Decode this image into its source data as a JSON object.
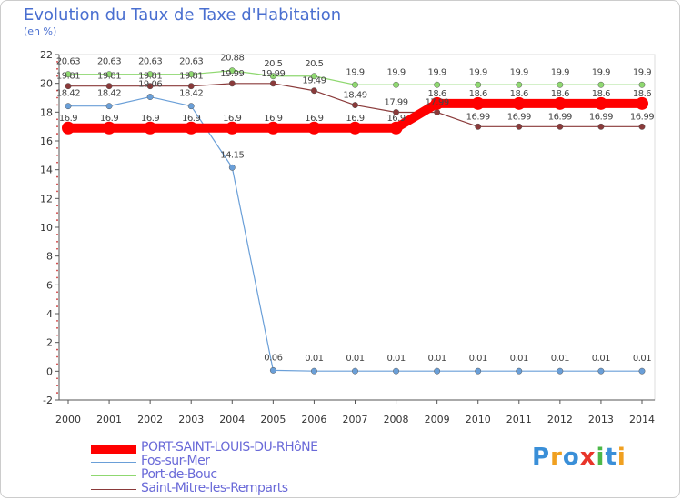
{
  "chart_data": {
    "type": "line",
    "title": "Evolution du Taux de Taxe d'Habitation",
    "subtitle": "(en %)",
    "xlabel": "",
    "ylabel": "",
    "ylim": [
      -2,
      22
    ],
    "yticks": [
      -2,
      0,
      2,
      4,
      6,
      8,
      10,
      12,
      14,
      16,
      18,
      20,
      22
    ],
    "categories": [
      "2000",
      "2001",
      "2002",
      "2003",
      "2004",
      "2005",
      "2006",
      "2007",
      "2008",
      "2009",
      "2010",
      "2011",
      "2012",
      "2013",
      "2014"
    ],
    "series": [
      {
        "name": "PORT-SAINT-LOUIS-DU-RHôNE",
        "color": "#ff0000",
        "values": [
          16.9,
          16.9,
          16.9,
          16.9,
          16.9,
          16.9,
          16.9,
          16.9,
          16.9,
          18.6,
          18.6,
          18.6,
          18.6,
          18.6,
          18.6
        ],
        "labels": [
          "16.9",
          "16.9",
          "16.9",
          "16.9",
          "16.9",
          "16.9",
          "16.9",
          "16.9",
          "16.9",
          "18.6",
          "18.6",
          "18.6",
          "18.6",
          "18.6",
          "18.6"
        ]
      },
      {
        "name": "Fos-sur-Mer",
        "color": "#6a9fd8",
        "values": [
          18.42,
          18.42,
          19.06,
          18.42,
          14.15,
          0.06,
          0.01,
          0.01,
          0.01,
          0.01,
          0.01,
          0.01,
          0.01,
          0.01,
          0.01
        ],
        "labels": [
          "18.42",
          "18.42",
          "19.06",
          "18.42",
          "14.15",
          "0.06",
          "0.01",
          "0.01",
          "0.01",
          "0.01",
          "0.01",
          "0.01",
          "0.01",
          "0.01",
          "0.01"
        ]
      },
      {
        "name": "Port-de-Bouc",
        "color": "#8fd870",
        "values": [
          20.63,
          20.63,
          20.63,
          20.63,
          20.88,
          20.5,
          20.5,
          19.9,
          19.9,
          19.9,
          19.9,
          19.9,
          19.9,
          19.9,
          19.9
        ],
        "labels": [
          "20.63",
          "20.63",
          "20.63",
          "20.63",
          "20.88",
          "20.5",
          "20.5",
          "19.9",
          "19.9",
          "19.9",
          "19.9",
          "19.9",
          "19.9",
          "19.9",
          "19.9"
        ]
      },
      {
        "name": "Saint-Mitre-les-Remparts",
        "color": "#8a3a3a",
        "values": [
          19.81,
          19.81,
          19.81,
          19.81,
          19.99,
          19.99,
          19.49,
          18.49,
          17.99,
          17.99,
          16.99,
          16.99,
          16.99,
          16.99,
          16.99
        ],
        "labels": [
          "19.81",
          "19.81",
          "19.81",
          "19.81",
          "19.99",
          "19.99",
          "19.49",
          "18.49",
          "17.99",
          "17.99",
          "16.99",
          "16.99",
          "16.99",
          "16.99",
          "16.99"
        ]
      }
    ]
  },
  "logo": {
    "text": "Proxiti"
  }
}
